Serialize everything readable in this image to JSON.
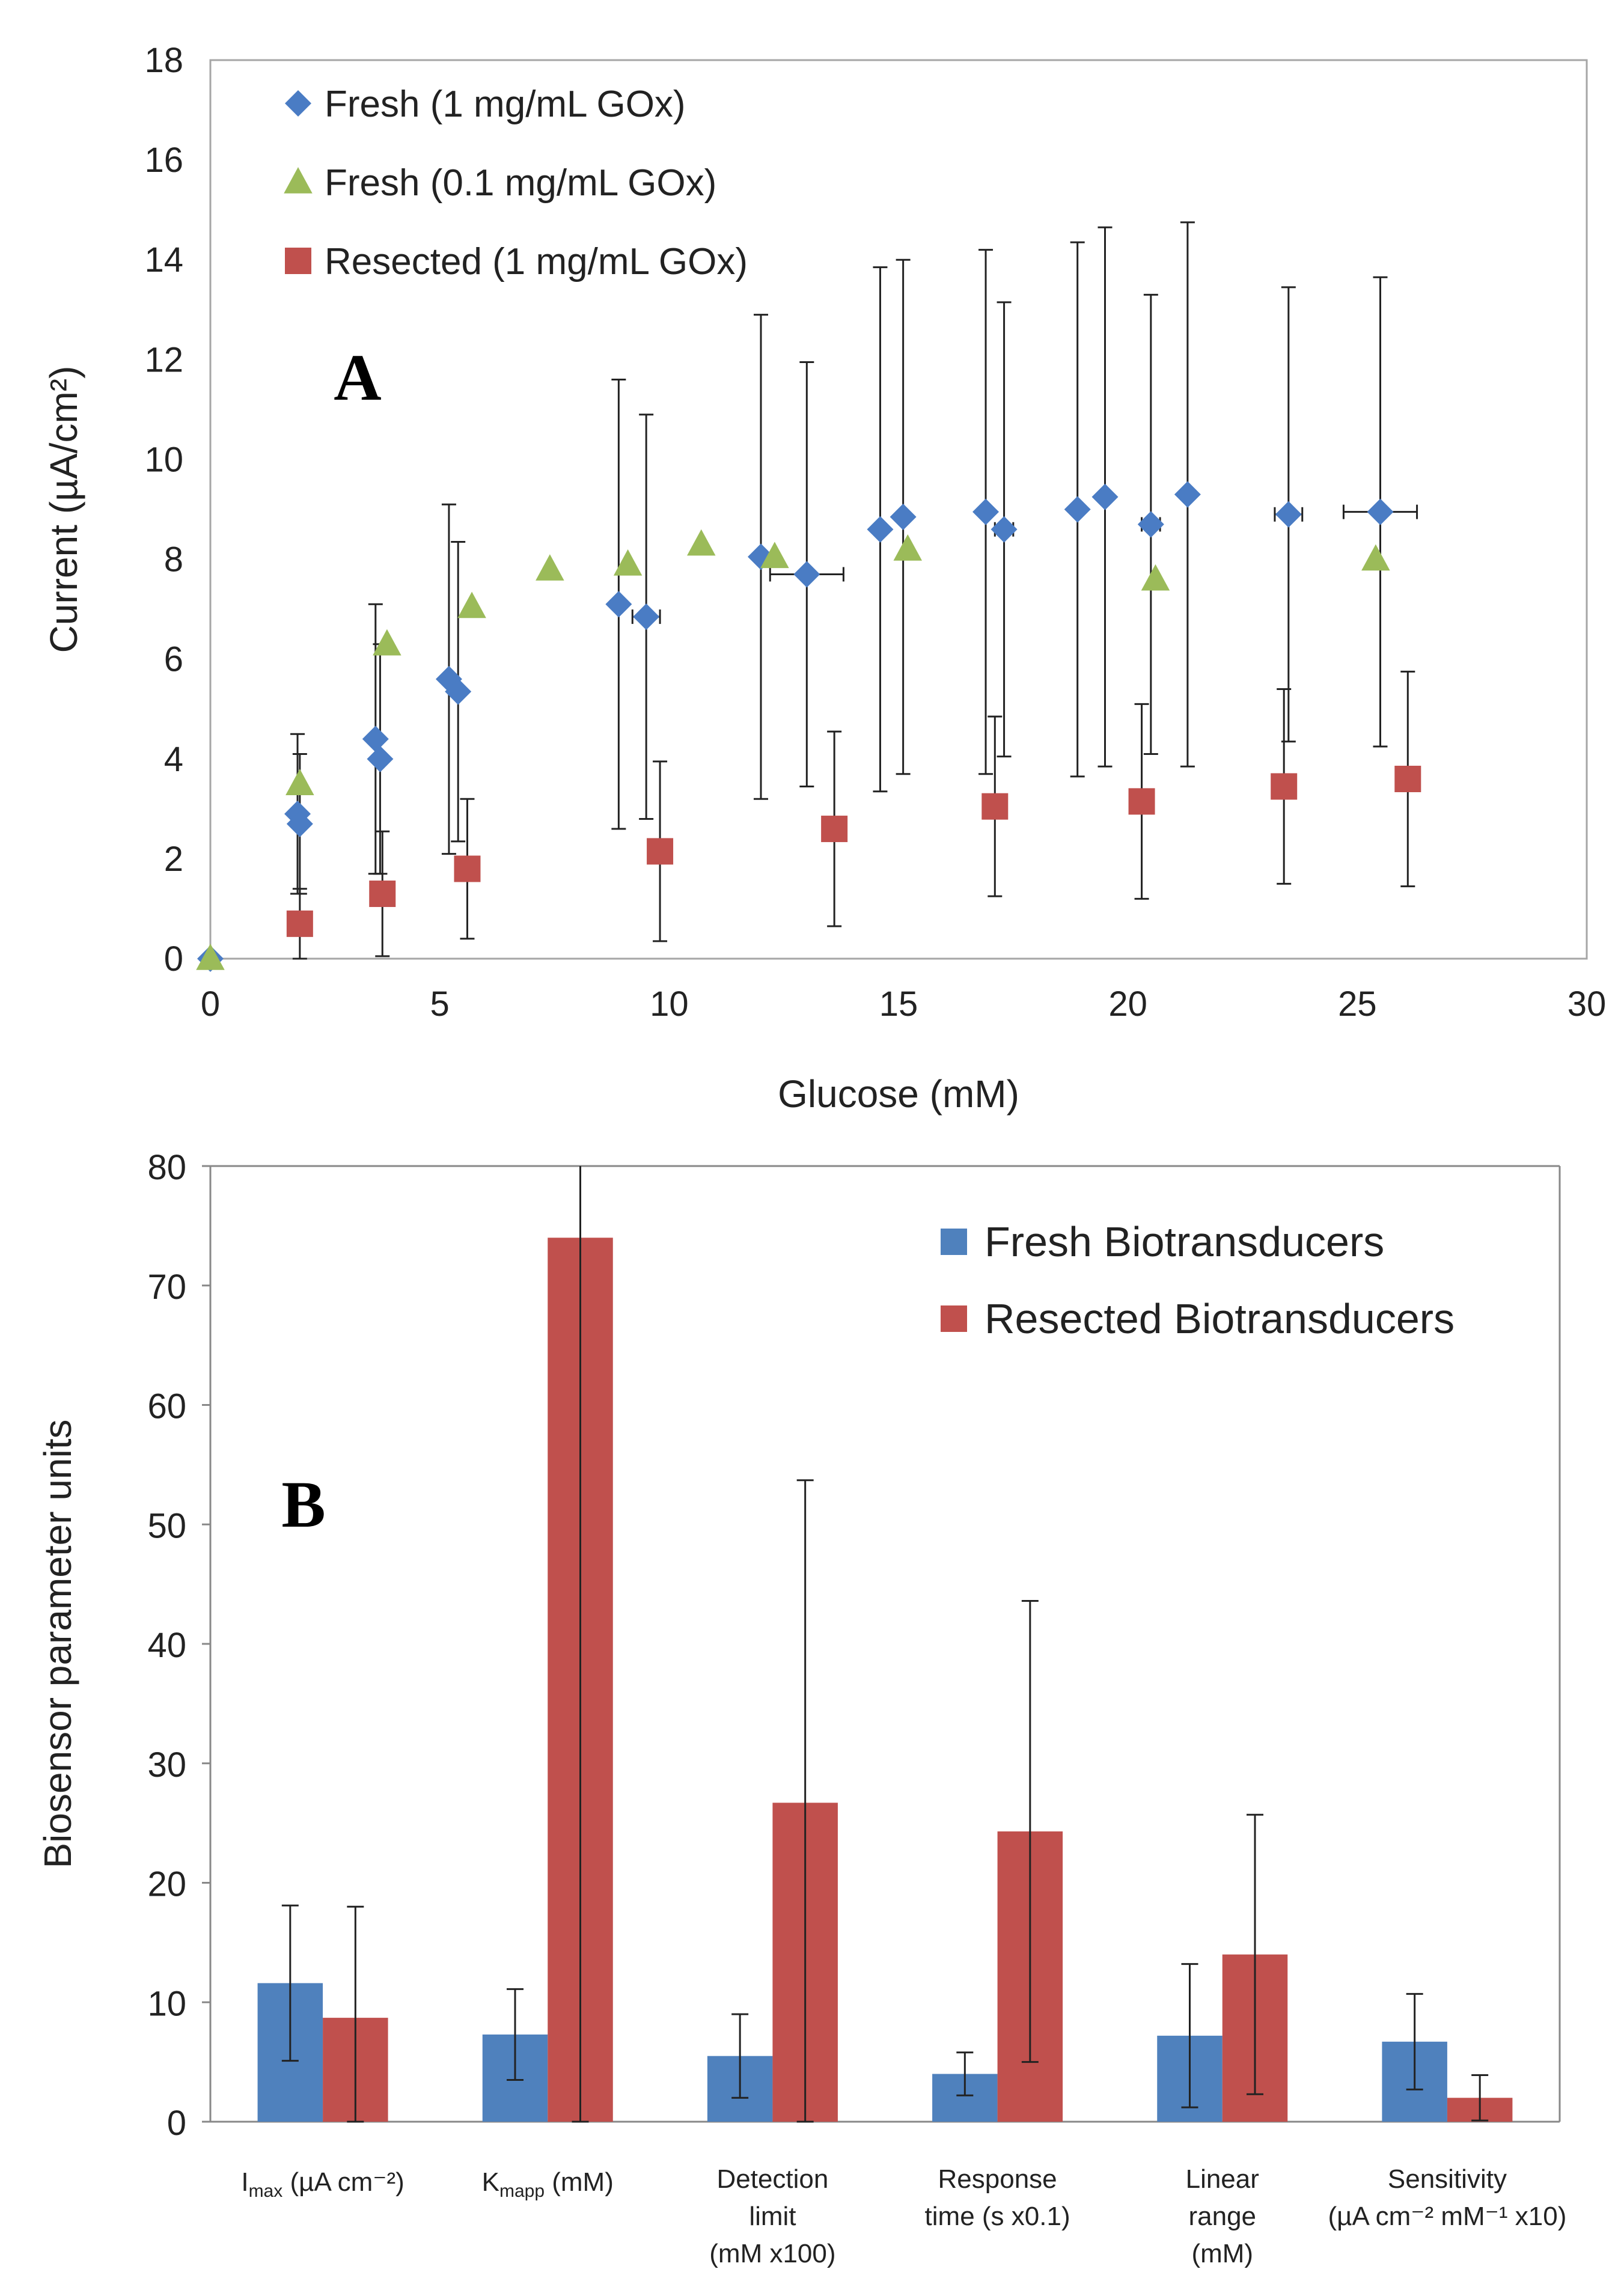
{
  "chart_data": [
    {
      "type": "scatter",
      "panel_label": "A",
      "xlabel": "Glucose (mM)",
      "ylabel": "Current (µA/cm²)",
      "xlim": [
        0,
        30
      ],
      "ylim": [
        0,
        18
      ],
      "xticks": [
        "0",
        "5",
        "10",
        "15",
        "20",
        "25",
        "30"
      ],
      "yticks": [
        "0",
        "2",
        "4",
        "6",
        "8",
        "10",
        "12",
        "14",
        "16",
        "18"
      ],
      "legend_position": "top-left",
      "series": [
        {
          "name": "Fresh (1 mg/mL GOx)",
          "marker": "diamond",
          "color": "#4a7cc4",
          "points": [
            {
              "x": 0,
              "y": 0,
              "err": 0,
              "xerr": 0
            },
            {
              "x": 1.9,
              "y": 2.9,
              "err": 1.6,
              "xerr": 0
            },
            {
              "x": 1.95,
              "y": 2.7,
              "err": 1.4,
              "xerr": 0
            },
            {
              "x": 3.6,
              "y": 4.4,
              "err": 2.7,
              "xerr": 0
            },
            {
              "x": 3.7,
              "y": 4.0,
              "err": 2.3,
              "xerr": 0
            },
            {
              "x": 5.2,
              "y": 5.6,
              "err": 3.5,
              "xerr": 0
            },
            {
              "x": 5.4,
              "y": 5.35,
              "err": 3.0,
              "xerr": 0
            },
            {
              "x": 8.9,
              "y": 7.1,
              "err": 4.5,
              "xerr": 0
            },
            {
              "x": 9.5,
              "y": 6.85,
              "err": 4.05,
              "xerr": 0.3
            },
            {
              "x": 12.0,
              "y": 8.05,
              "err": 4.85,
              "xerr": 0
            },
            {
              "x": 13.0,
              "y": 7.7,
              "err": 4.25,
              "xerr": 0.8
            },
            {
              "x": 14.6,
              "y": 8.6,
              "err": 5.25,
              "xerr": 0
            },
            {
              "x": 15.1,
              "y": 8.85,
              "err": 5.15,
              "xerr": 0
            },
            {
              "x": 16.9,
              "y": 8.95,
              "err": 5.25,
              "xerr": 0
            },
            {
              "x": 17.3,
              "y": 8.6,
              "err": 4.55,
              "xerr": 0.2
            },
            {
              "x": 18.9,
              "y": 9.0,
              "err": 5.35,
              "xerr": 0
            },
            {
              "x": 19.5,
              "y": 9.25,
              "err": 5.4,
              "xerr": 0
            },
            {
              "x": 20.5,
              "y": 8.7,
              "err": 4.6,
              "xerr": 0.2
            },
            {
              "x": 21.3,
              "y": 9.3,
              "err": 5.45,
              "xerr": 0
            },
            {
              "x": 23.5,
              "y": 8.9,
              "err": 4.55,
              "xerr": 0.3
            },
            {
              "x": 25.5,
              "y": 8.95,
              "err": 4.7,
              "xerr": 0.8
            }
          ]
        },
        {
          "name": "Fresh (0.1 mg/mL GOx)",
          "marker": "triangle",
          "color": "#9bbb59",
          "points": [
            {
              "x": 0,
              "y": 0
            },
            {
              "x": 1.95,
              "y": 3.5
            },
            {
              "x": 3.85,
              "y": 6.3
            },
            {
              "x": 5.7,
              "y": 7.05
            },
            {
              "x": 7.4,
              "y": 7.8
            },
            {
              "x": 9.1,
              "y": 7.9
            },
            {
              "x": 10.7,
              "y": 8.3
            },
            {
              "x": 12.3,
              "y": 8.05
            },
            {
              "x": 15.2,
              "y": 8.2
            },
            {
              "x": 20.6,
              "y": 7.6
            },
            {
              "x": 25.4,
              "y": 8.0
            }
          ]
        },
        {
          "name": "Resected (1 mg/mL GOx)",
          "marker": "square",
          "color": "#c0504d",
          "points": [
            {
              "x": 1.95,
              "y": 0.7,
              "err": 0.7
            },
            {
              "x": 3.75,
              "y": 1.3,
              "err": 1.25
            },
            {
              "x": 5.6,
              "y": 1.8,
              "err": 1.4
            },
            {
              "x": 9.8,
              "y": 2.15,
              "err": 1.8
            },
            {
              "x": 13.6,
              "y": 2.6,
              "err": 1.95
            },
            {
              "x": 17.1,
              "y": 3.05,
              "err": 1.8
            },
            {
              "x": 20.3,
              "y": 3.15,
              "err": 1.95
            },
            {
              "x": 23.4,
              "y": 3.45,
              "err": 1.95
            },
            {
              "x": 26.1,
              "y": 3.6,
              "err": 2.15
            }
          ]
        }
      ]
    },
    {
      "type": "bar",
      "panel_label": "B",
      "ylabel": "Biosensor parameter units",
      "ylim": [
        0,
        80
      ],
      "yticks": [
        "0",
        "10",
        "20",
        "30",
        "40",
        "50",
        "60",
        "70",
        "80"
      ],
      "legend_position": "top-right",
      "categories": [
        {
          "lines": [
            "I_max (µA cm⁻²)"
          ],
          "label": "I",
          "sub": "max",
          "rest": " (µA cm⁻²)"
        },
        {
          "lines": [
            "K_mapp (mM)"
          ],
          "label": "K",
          "sub": "mapp",
          "rest": " (mM)"
        },
        {
          "lines": [
            "Detection",
            "limit",
            "(mM x100)"
          ]
        },
        {
          "lines": [
            "Response",
            "time (s x0.1)"
          ]
        },
        {
          "lines": [
            "Linear",
            "range",
            "(mM)"
          ]
        },
        {
          "lines": [
            "Sensitivity",
            "(µA cm⁻² mM⁻¹ x10)"
          ]
        }
      ],
      "series": [
        {
          "name": "Fresh Biotransducers",
          "color": "#4f81bd",
          "values": [
            11.6,
            7.3,
            5.5,
            4.0,
            7.2,
            6.7
          ],
          "errors": [
            6.5,
            3.8,
            3.5,
            1.8,
            6.0,
            4.0
          ]
        },
        {
          "name": "Resected Biotransducers",
          "color": "#c0504d",
          "values": [
            8.7,
            74.0,
            26.7,
            24.3,
            14.0,
            2.0
          ],
          "errors": [
            9.3,
            80.0,
            27.0,
            19.3,
            11.7,
            1.9
          ]
        }
      ]
    }
  ]
}
